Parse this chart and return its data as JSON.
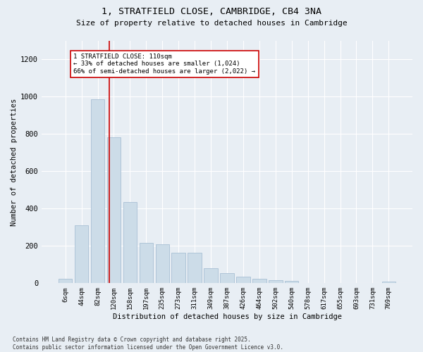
{
  "title_line1": "1, STRATFIELD CLOSE, CAMBRIDGE, CB4 3NA",
  "title_line2": "Size of property relative to detached houses in Cambridge",
  "xlabel": "Distribution of detached houses by size in Cambridge",
  "ylabel": "Number of detached properties",
  "categories": [
    "6sqm",
    "44sqm",
    "82sqm",
    "120sqm",
    "158sqm",
    "197sqm",
    "235sqm",
    "273sqm",
    "311sqm",
    "349sqm",
    "387sqm",
    "426sqm",
    "464sqm",
    "502sqm",
    "540sqm",
    "578sqm",
    "617sqm",
    "655sqm",
    "693sqm",
    "731sqm",
    "769sqm"
  ],
  "values": [
    25,
    310,
    985,
    780,
    435,
    215,
    210,
    165,
    165,
    80,
    55,
    35,
    25,
    18,
    12,
    0,
    0,
    0,
    0,
    0,
    8
  ],
  "bar_color": "#ccdce8",
  "bar_edge_color": "#a8c0d4",
  "vline_color": "#cc0000",
  "annotation_text": "1 STRATFIELD CLOSE: 110sqm\n← 33% of detached houses are smaller (1,024)\n66% of semi-detached houses are larger (2,022) →",
  "annotation_box_color": "#ffffff",
  "annotation_box_edge": "#cc0000",
  "background_color": "#e8eef4",
  "grid_color": "#ffffff",
  "ylim": [
    0,
    1300
  ],
  "yticks": [
    0,
    200,
    400,
    600,
    800,
    1000,
    1200
  ],
  "footer_line1": "Contains HM Land Registry data © Crown copyright and database right 2025.",
  "footer_line2": "Contains public sector information licensed under the Open Government Licence v3.0."
}
